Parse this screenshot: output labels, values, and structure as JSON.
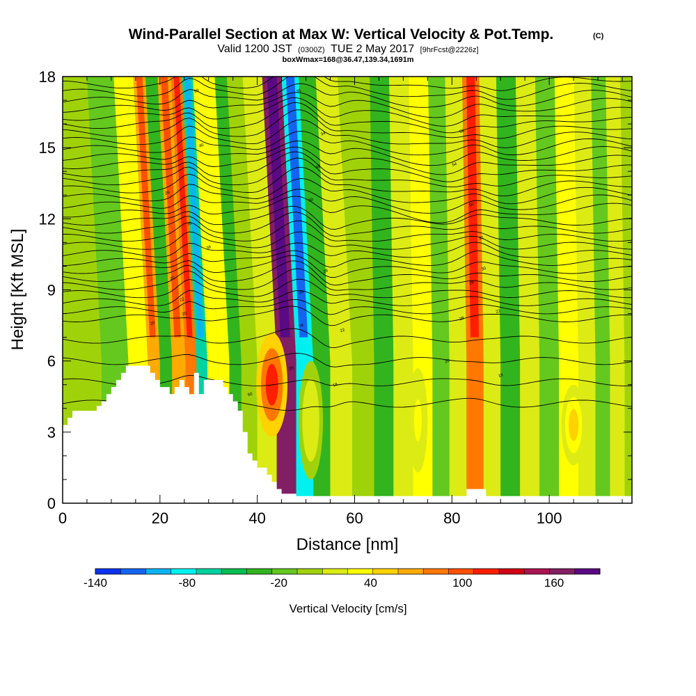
{
  "chart_data": {
    "type": "heatmap",
    "title": "Wind-Parallel Section at Max W: Vertical Velocity & Pot.Temp.",
    "title_mark": "(C)",
    "subtitle": {
      "valid_prefix": "Valid 1200 JST",
      "utc": "(0300Z)",
      "date": "TUE 2 May 2017",
      "forecast": "[9hrFcst@2226z]"
    },
    "subtitle2": "boxWmax=168@36.47,139.34,1691m",
    "xlabel": "Distance [nm]",
    "ylabel": "Height [Kft MSL]",
    "xlim": [
      0,
      117
    ],
    "ylim": [
      0,
      18
    ],
    "x_ticks": [
      "0",
      "20",
      "40",
      "60",
      "80",
      "100"
    ],
    "y_ticks": [
      "0",
      "3",
      "6",
      "9",
      "12",
      "15",
      "18"
    ],
    "colorbar": {
      "label": "Vertical Velocity [cm/s]",
      "range": [
        -140,
        190
      ],
      "ticks": [
        "-140",
        "-80",
        "-20",
        "40",
        "100",
        "160"
      ],
      "colors": [
        "#0a32f0",
        "#1464f0",
        "#0ab4f0",
        "#00f0f0",
        "#00d2a0",
        "#00be50",
        "#32b41e",
        "#64c81e",
        "#a0d20a",
        "#dceb14",
        "#ffff00",
        "#ffd200",
        "#ffaa00",
        "#ff7800",
        "#ff5000",
        "#ff1e00",
        "#d20014",
        "#aa1450",
        "#821e64",
        "#5a0a82"
      ]
    },
    "velocity_bands": [
      {
        "x": 0,
        "w": 5
      },
      {
        "x": 5,
        "w": 5
      },
      {
        "x": 11,
        "w": -12
      },
      {
        "x": 16,
        "w": 30
      },
      {
        "x": 19,
        "w": 60
      },
      {
        "x": 21,
        "w": -25
      },
      {
        "x": 24,
        "w": 60
      },
      {
        "x": 26.5,
        "w": 80
      },
      {
        "x": 28.5,
        "w": -70
      },
      {
        "x": 31,
        "w": 35
      },
      {
        "x": 33,
        "w": 40
      },
      {
        "x": 35.5,
        "w": -30
      },
      {
        "x": 38,
        "w": 0
      },
      {
        "x": 42,
        "w": 20
      },
      {
        "x": 46,
        "w": 170
      },
      {
        "x": 50,
        "w": -85
      },
      {
        "x": 53,
        "w": -35
      },
      {
        "x": 57,
        "w": 20
      },
      {
        "x": 62,
        "w": 0
      },
      {
        "x": 66,
        "w": -25
      },
      {
        "x": 70,
        "w": 20
      },
      {
        "x": 74,
        "w": 35
      },
      {
        "x": 78,
        "w": -10
      },
      {
        "x": 81,
        "w": 15
      },
      {
        "x": 85,
        "w": 75
      },
      {
        "x": 88,
        "w": 10
      },
      {
        "x": 92,
        "w": -25
      },
      {
        "x": 96,
        "w": 10
      },
      {
        "x": 100,
        "w": -15
      },
      {
        "x": 104,
        "w": 25
      },
      {
        "x": 108,
        "w": 15
      },
      {
        "x": 111,
        "w": -15
      },
      {
        "x": 114,
        "w": 10
      },
      {
        "x": 117,
        "w": 5
      }
    ],
    "low_level_blobs": [
      {
        "x": 43,
        "y": 5.0,
        "w": 120,
        "rx": 3.2,
        "ry": 2.2
      },
      {
        "x": 105,
        "y": 3.3,
        "w": 45,
        "rx": 2.5,
        "ry": 1.7
      },
      {
        "x": 73,
        "y": 3.5,
        "w": 30,
        "rx": 2.0,
        "ry": 2.2
      },
      {
        "x": 51,
        "y": 3.5,
        "w": 20,
        "rx": 2.5,
        "ry": 2.5
      }
    ],
    "terrain": [
      [
        0,
        3.3
      ],
      [
        1,
        3.6
      ],
      [
        2,
        3.9
      ],
      [
        5,
        3.9
      ],
      [
        7,
        4.1
      ],
      [
        8,
        4.3
      ],
      [
        9,
        4.6
      ],
      [
        10,
        4.9
      ],
      [
        11,
        5.2
      ],
      [
        12,
        5.5
      ],
      [
        13,
        5.8
      ],
      [
        18,
        5.5
      ],
      [
        19,
        5.2
      ],
      [
        20,
        4.9
      ],
      [
        22,
        4.6
      ],
      [
        23,
        4.9
      ],
      [
        24,
        5.2
      ],
      [
        25,
        4.9
      ],
      [
        26,
        4.6
      ],
      [
        27,
        5.5
      ],
      [
        28,
        4.6
      ],
      [
        29,
        5.2
      ],
      [
        33,
        4.9
      ],
      [
        34,
        4.6
      ],
      [
        35,
        4.3
      ],
      [
        36,
        3.9
      ],
      [
        37,
        3.0
      ],
      [
        38,
        2.1
      ],
      [
        39,
        1.8
      ],
      [
        40,
        1.5
      ],
      [
        42,
        1.2
      ],
      [
        43,
        0.9
      ],
      [
        44,
        0.6
      ],
      [
        45,
        0.4
      ],
      [
        48,
        0.3
      ],
      [
        83,
        0.6
      ],
      [
        87,
        0.3
      ],
      [
        117,
        0.3
      ]
    ],
    "theta_contours": {
      "start": 16,
      "step": 2,
      "count": 34
    },
    "contour_labels": [
      {
        "x": 18.5,
        "y": 7.6,
        "t": "20"
      },
      {
        "x": 22.5,
        "y": 9.5,
        "t": "20"
      },
      {
        "x": 24.5,
        "y": 8.6,
        "t": "22"
      },
      {
        "x": 25,
        "y": 8.0,
        "t": "20"
      },
      {
        "x": 26,
        "y": 11.8,
        "t": "30"
      },
      {
        "x": 21.5,
        "y": 13.1,
        "t": "28"
      },
      {
        "x": 28.5,
        "y": 15.1,
        "t": "40"
      },
      {
        "x": 27.5,
        "y": 17.4,
        "t": "58"
      },
      {
        "x": 30,
        "y": 10.8,
        "t": "36"
      },
      {
        "x": 38.5,
        "y": 4.6,
        "t": "50"
      },
      {
        "x": 47,
        "y": 5.7,
        "t": "26"
      },
      {
        "x": 49,
        "y": 7.5,
        "t": "24"
      },
      {
        "x": 49,
        "y": 8.9,
        "t": "26"
      },
      {
        "x": 54,
        "y": 9.8,
        "t": "28"
      },
      {
        "x": 57.5,
        "y": 7.3,
        "t": "22"
      },
      {
        "x": 56,
        "y": 5.0,
        "t": "18"
      },
      {
        "x": 51,
        "y": 12.8,
        "t": "30"
      },
      {
        "x": 52.5,
        "y": 14.2,
        "t": "48"
      },
      {
        "x": 53.5,
        "y": 15.6,
        "t": "34"
      },
      {
        "x": 48.5,
        "y": 17.4,
        "t": "35"
      },
      {
        "x": 82,
        "y": 15.7,
        "t": "58"
      },
      {
        "x": 80.5,
        "y": 14.3,
        "t": "54"
      },
      {
        "x": 84,
        "y": 12.6,
        "t": "50"
      },
      {
        "x": 86,
        "y": 11.2,
        "t": "32"
      },
      {
        "x": 86.5,
        "y": 9.9,
        "t": "30"
      },
      {
        "x": 84,
        "y": 9.3,
        "t": "28"
      },
      {
        "x": 82,
        "y": 7.8,
        "t": "28"
      },
      {
        "x": 89.5,
        "y": 8.1,
        "t": "22"
      },
      {
        "x": 79,
        "y": 6.0,
        "t": "20"
      },
      {
        "x": 90,
        "y": 5.4,
        "t": "18"
      }
    ]
  }
}
